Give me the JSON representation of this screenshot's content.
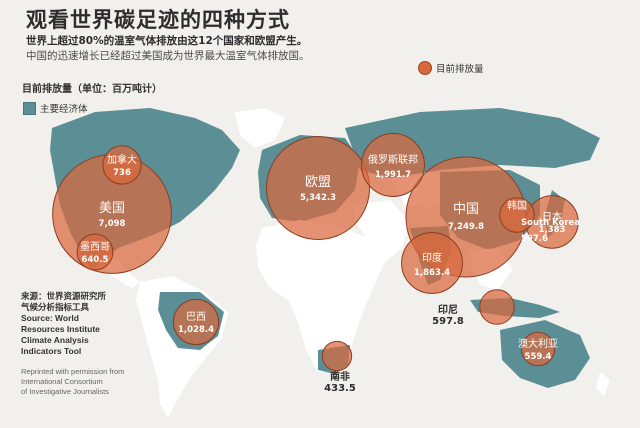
{
  "header": {
    "title": "观看世界碳足迹的四种方式",
    "subtitle": "世界上超过80%的温室气体排放由这12个国家和欧盟产生。",
    "subtitle2": "中国的迅速增长已经超过美国成为世界最大温室气体排放国。"
  },
  "legend": {
    "units": "目前排放量（单位：百万吨计）",
    "economies": "主要经济体",
    "circle": "目前排放量",
    "economies_color": "#5b8f95",
    "circle_color": "#d9683d"
  },
  "source": {
    "lines": [
      "来源：世界资源研究所",
      "气候分析指标工具",
      "Source: World",
      "Resources Institute",
      "Climate Analysis",
      "Indicators Tool"
    ]
  },
  "credit": {
    "lines": [
      "Reprinted with permission from",
      "International Consortium",
      "of Investigative Journalists"
    ]
  },
  "external_labels": {
    "indonesia_name": "印尼",
    "indonesia_value": "597.8",
    "south_africa_name": "南非",
    "south_africa_value": "433.5"
  },
  "chart_data": {
    "type": "bubble-map",
    "title": "观看世界碳足迹的四种方式",
    "units": "百万吨",
    "regions": [
      {
        "name": "美国",
        "value": 7098,
        "label": "7,098"
      },
      {
        "name": "加拿大",
        "value": 736,
        "label": "736"
      },
      {
        "name": "墨西哥",
        "value": 640.5,
        "label": "640.5"
      },
      {
        "name": "巴西",
        "value": 1028.4,
        "label": "1,028.4"
      },
      {
        "name": "欧盟",
        "value": 5342.3,
        "label": "5,342.3"
      },
      {
        "name": "俄罗斯联邦",
        "value": 1991.7,
        "label": "1,991.7"
      },
      {
        "name": "中国",
        "value": 7249.8,
        "label": "7,249.8"
      },
      {
        "name": "印度",
        "value": 1863.4,
        "label": "1,863.4"
      },
      {
        "name": "日本",
        "value": 1383,
        "label": "1,383"
      },
      {
        "name": "韩国",
        "name_en": "South Korea",
        "value": 597.6,
        "label": "597.6"
      },
      {
        "name": "印尼",
        "value": 597.8,
        "label": "597.8"
      },
      {
        "name": "澳大利亚",
        "value": 559.4,
        "label": "559.4"
      },
      {
        "name": "南非",
        "value": 433.5,
        "label": "433.5"
      }
    ]
  }
}
